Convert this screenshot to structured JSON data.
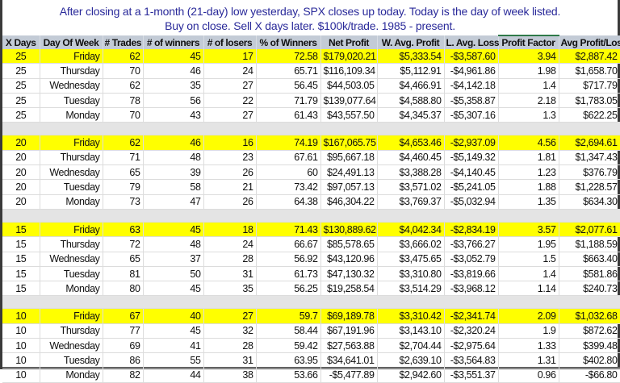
{
  "title": {
    "line1": "After closing at a 1-month (21-day) low yesterday, SPX closes up today. Today is the day of week listed.",
    "line2": "Buy on close. Sell X days later. $100k/trade. 1985 - present."
  },
  "highlight_color": "#ffff00",
  "columns": [
    "X Days",
    "Day Of Week",
    "# Trades",
    "# of winners",
    "# of losers",
    "% of Winners",
    "Net Profit",
    "W. Avg. Profit",
    "L. Avg. Loss",
    "Profit Factor",
    "Avg Profit/Loss"
  ],
  "groups": [
    {
      "rows": [
        [
          "25",
          "Friday",
          "62",
          "45",
          "17",
          "72.58",
          "$179,020.21",
          "$5,333.54",
          "-$3,587.60",
          "3.94",
          "$2,887.42"
        ],
        [
          "25",
          "Thursday",
          "70",
          "46",
          "24",
          "65.71",
          "$116,109.34",
          "$5,112.91",
          "-$4,961.86",
          "1.98",
          "$1,658.70"
        ],
        [
          "25",
          "Wednesday",
          "62",
          "35",
          "27",
          "56.45",
          "$44,503.05",
          "$4,466.91",
          "-$4,142.18",
          "1.4",
          "$717.79"
        ],
        [
          "25",
          "Tuesday",
          "78",
          "56",
          "22",
          "71.79",
          "$139,077.64",
          "$4,588.80",
          "-$5,358.87",
          "2.18",
          "$1,783.05"
        ],
        [
          "25",
          "Monday",
          "70",
          "43",
          "27",
          "61.43",
          "$43,557.50",
          "$4,345.37",
          "-$5,307.16",
          "1.3",
          "$622.25"
        ]
      ]
    },
    {
      "rows": [
        [
          "20",
          "Friday",
          "62",
          "46",
          "16",
          "74.19",
          "$167,065.75",
          "$4,653.46",
          "-$2,937.09",
          "4.56",
          "$2,694.61"
        ],
        [
          "20",
          "Thursday",
          "71",
          "48",
          "23",
          "67.61",
          "$95,667.18",
          "$4,460.45",
          "-$5,149.32",
          "1.81",
          "$1,347.43"
        ],
        [
          "20",
          "Wednesday",
          "65",
          "39",
          "26",
          "60",
          "$24,491.13",
          "$3,388.28",
          "-$4,140.45",
          "1.23",
          "$376.79"
        ],
        [
          "20",
          "Tuesday",
          "79",
          "58",
          "21",
          "73.42",
          "$97,057.13",
          "$3,571.02",
          "-$5,241.05",
          "1.88",
          "$1,228.57"
        ],
        [
          "20",
          "Monday",
          "73",
          "47",
          "26",
          "64.38",
          "$46,304.22",
          "$3,769.37",
          "-$5,032.94",
          "1.35",
          "$634.30"
        ]
      ]
    },
    {
      "rows": [
        [
          "15",
          "Friday",
          "63",
          "45",
          "18",
          "71.43",
          "$130,889.62",
          "$4,042.34",
          "-$2,834.19",
          "3.57",
          "$2,077.61"
        ],
        [
          "15",
          "Thursday",
          "72",
          "48",
          "24",
          "66.67",
          "$85,578.65",
          "$3,666.02",
          "-$3,766.27",
          "1.95",
          "$1,188.59"
        ],
        [
          "15",
          "Wednesday",
          "65",
          "37",
          "28",
          "56.92",
          "$43,120.96",
          "$3,475.65",
          "-$3,052.79",
          "1.5",
          "$663.40"
        ],
        [
          "15",
          "Tuesday",
          "81",
          "50",
          "31",
          "61.73",
          "$47,130.32",
          "$3,310.80",
          "-$3,819.66",
          "1.4",
          "$581.86"
        ],
        [
          "15",
          "Monday",
          "80",
          "45",
          "35",
          "56.25",
          "$19,258.54",
          "$3,514.29",
          "-$3,968.12",
          "1.14",
          "$240.73"
        ]
      ]
    },
    {
      "rows": [
        [
          "10",
          "Friday",
          "67",
          "40",
          "27",
          "59.7",
          "$69,189.78",
          "$3,310.42",
          "-$2,341.74",
          "2.09",
          "$1,032.68"
        ],
        [
          "10",
          "Thursday",
          "77",
          "45",
          "32",
          "58.44",
          "$67,191.96",
          "$3,143.10",
          "-$2,320.24",
          "1.9",
          "$872.62"
        ],
        [
          "10",
          "Wednesday",
          "69",
          "41",
          "28",
          "59.42",
          "$27,563.88",
          "$2,704.44",
          "-$2,975.64",
          "1.33",
          "$399.48"
        ],
        [
          "10",
          "Tuesday",
          "86",
          "55",
          "31",
          "63.95",
          "$34,641.01",
          "$2,639.10",
          "-$3,564.83",
          "1.31",
          "$402.80"
        ],
        [
          "10",
          "Monday",
          "82",
          "44",
          "38",
          "53.66",
          "-$5,477.89",
          "$2,942.60",
          "-$3,551.37",
          "0.96",
          "-$66.80"
        ]
      ]
    }
  ]
}
